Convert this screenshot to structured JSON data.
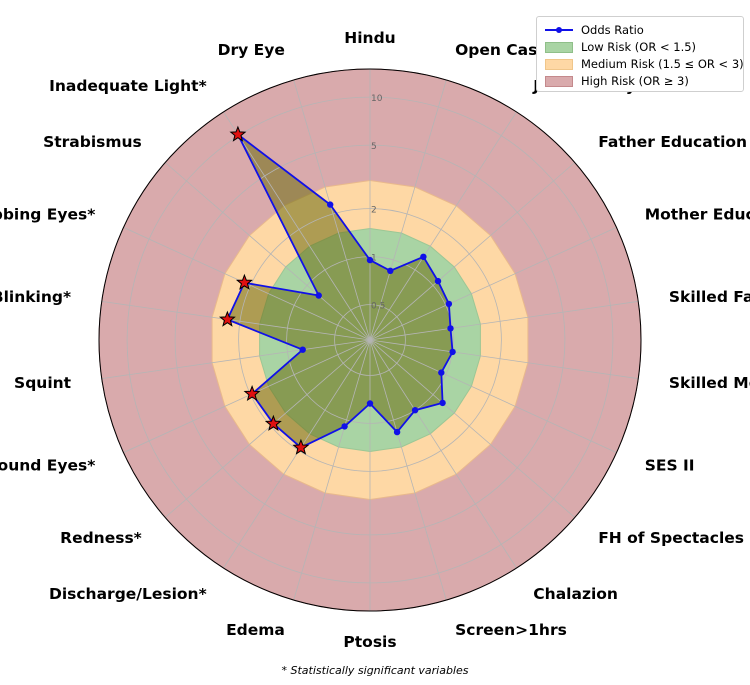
{
  "chart_data": {
    "type": "radar",
    "title": "",
    "categories": [
      "Hindu",
      "Open Caste",
      "Joint Family",
      "Father Education > SSC",
      "Mother Education < SSC",
      "Skilled Father",
      "Skilled Mother",
      "SES II",
      "FH of Spectacles",
      "Chalazion",
      "Screen>1hrs",
      "Ptosis",
      "Edema",
      "Discharge/Lesion*",
      "Redness*",
      "Rash around Eyes*",
      "Squint",
      "Excessive Blinking*",
      "Rubbing Eyes*",
      "Strabismus",
      "Inadequate Light*",
      "Dry Eye"
    ],
    "series": [
      {
        "name": "Odds Ratio",
        "color": "#1010e8",
        "values": [
          0.95,
          0.85,
          1.25,
          1.1,
          1.05,
          0.97,
          1.0,
          0.93,
          1.2,
          1.0,
          1.2,
          0.75,
          1.1,
          1.9,
          1.9,
          1.95,
          0.8,
          2.4,
          2.2,
          0.8,
          10.2,
          2.3
        ],
        "significant": [
          false,
          false,
          false,
          false,
          false,
          false,
          false,
          false,
          false,
          false,
          false,
          false,
          false,
          true,
          true,
          true,
          false,
          true,
          true,
          false,
          true,
          false
        ]
      }
    ],
    "radial_scale": "log",
    "rlim": [
      0.3,
      15
    ],
    "rticks": [
      "0.5",
      "1",
      "2",
      "5",
      "10"
    ],
    "rtick_values": [
      0.5,
      1,
      2,
      5,
      10
    ],
    "bands": [
      {
        "label": "Low Risk (OR < 1.5)",
        "max": 1.5,
        "color": "#a9d4a4"
      },
      {
        "label": "Medium Risk (1.5 ≤ OR < 3)",
        "max": 3,
        "color": "#fed8a5"
      },
      {
        "label": "High Risk (OR ≥ 3)",
        "max": 15,
        "color": "#d9aaac"
      }
    ],
    "legend_position": "top-right",
    "grid": true,
    "footnote": "* Statistically significant variables"
  }
}
